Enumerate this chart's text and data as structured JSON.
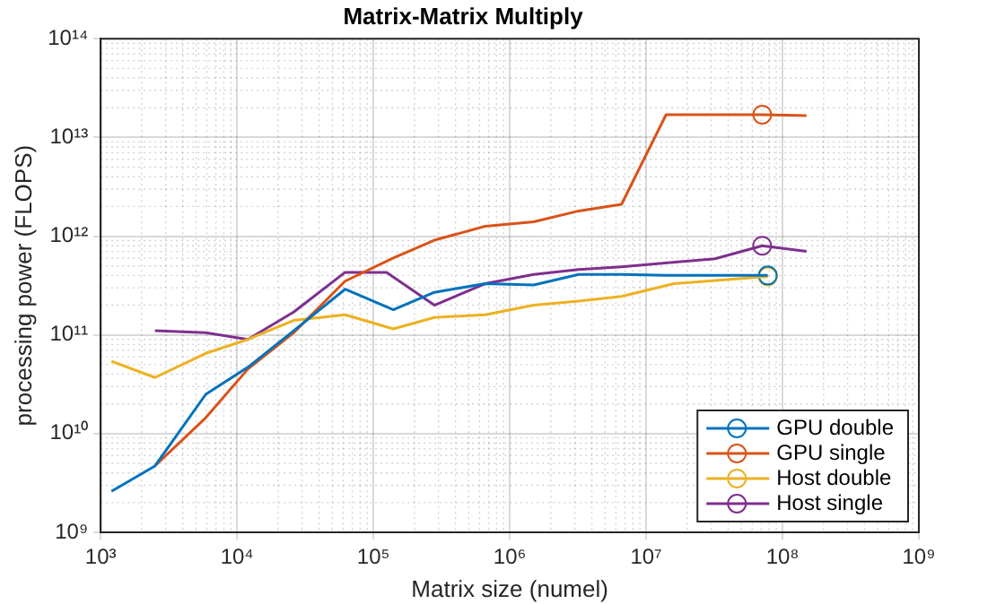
{
  "chart_data": {
    "type": "line",
    "title": "Matrix-Matrix Multiply",
    "xlabel": "Matrix size (numel)",
    "ylabel": "processing power (FLOPS)",
    "log": "xy",
    "grid": true,
    "legend": "bottom right",
    "marker": "none",
    "line_style": "solid",
    "xlim": [
      1000,
      1000000000
    ],
    "xticks": [
      {
        "value": 1000,
        "label": "10³"
      },
      {
        "value": 10000,
        "label": "10⁴"
      },
      {
        "value": 100000,
        "label": "10⁵"
      },
      {
        "value": 1000000,
        "label": "10⁶"
      },
      {
        "value": 10000000,
        "label": "10⁷"
      },
      {
        "value": 100000000,
        "label": "10⁸"
      },
      {
        "value": 1000000000,
        "label": "10⁹"
      }
    ],
    "ylim": [
      1000000000,
      100000000000000
    ],
    "yticks": [
      {
        "value": 1000000000,
        "label": "10⁹"
      },
      {
        "value": 10000000000,
        "label": "10¹⁰"
      },
      {
        "value": 100000000000,
        "label": "10¹¹"
      },
      {
        "value": 1000000000000,
        "label": "10¹²"
      },
      {
        "value": 10000000000000,
        "label": "10¹³"
      },
      {
        "value": 100000000000000,
        "label": "10¹⁴"
      }
    ],
    "series": [
      {
        "name": "GPU double",
        "color": "#0072bd",
        "x": [
          1200,
          2500,
          5900,
          12000,
          26000,
          62000,
          140000,
          280000,
          660000,
          1500000,
          3200000,
          6600000,
          14000000,
          32000000,
          78000000
        ],
        "values": [
          2600000000,
          4700000000,
          25000000000,
          47000000000,
          110000000000,
          290000000000,
          180000000000,
          270000000000,
          330000000000,
          320000000000,
          410000000000,
          410000000000,
          400000000000,
          400000000000,
          400000000000
        ]
      },
      {
        "name": "GPU single",
        "color": "#d95319",
        "x": [
          2500,
          5900,
          12000,
          26000,
          62000,
          140000,
          280000,
          660000,
          1500000,
          3200000,
          6600000,
          14000000,
          32000000,
          71000000,
          150000000
        ],
        "values": [
          4700000000,
          14500000000,
          45000000000,
          105000000000,
          350000000000,
          600000000000,
          910000000000,
          1260000000000,
          1400000000000,
          1800000000000,
          2100000000000,
          17000000000000,
          17000000000000,
          17000000000000,
          16600000000000
        ]
      },
      {
        "name": "Host double",
        "color": "#edb120",
        "x": [
          1200,
          2500,
          5900,
          12000,
          26000,
          62000,
          140000,
          280000,
          660000,
          1500000,
          3200000,
          6600000,
          16000000,
          78000000
        ],
        "values": [
          54000000000,
          37000000000,
          65000000000,
          90000000000,
          140000000000,
          160000000000,
          115000000000,
          150000000000,
          160000000000,
          200000000000,
          220000000000,
          245000000000,
          330000000000,
          390000000000
        ]
      },
      {
        "name": "Host single",
        "color": "#7e2f8e",
        "x": [
          2500,
          5900,
          12000,
          26000,
          62000,
          125000,
          280000,
          660000,
          1500000,
          3200000,
          6600000,
          32000000,
          71000000,
          150000000
        ],
        "values": [
          110000000000,
          105000000000,
          90000000000,
          170000000000,
          430000000000,
          430000000000,
          200000000000,
          330000000000,
          410000000000,
          460000000000,
          490000000000,
          590000000000,
          800000000000,
          700000000000
        ]
      },
      {
        "type": "scatter",
        "marker": "circle",
        "color": "#0072bd",
        "x": [
          78000000
        ],
        "values": [
          400000000000
        ]
      },
      {
        "type": "scatter",
        "marker": "circle",
        "color": "#d95319",
        "x": [
          71000000
        ],
        "values": [
          17000000000000
        ]
      },
      {
        "type": "scatter",
        "marker": "circle",
        "color": "#edb120",
        "x": [
          78000000
        ],
        "values": [
          390000000000
        ]
      },
      {
        "type": "scatter",
        "marker": "circle",
        "color": "#7e2f8e",
        "x": [
          71000000
        ],
        "values": [
          800000000000
        ]
      }
    ]
  }
}
